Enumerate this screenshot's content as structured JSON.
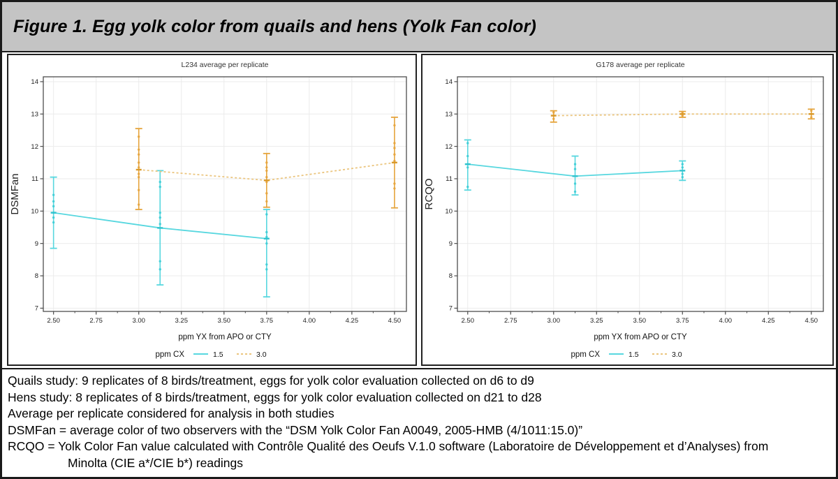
{
  "figure": {
    "title": "Figure 1. Egg yolk color from quails and hens (Yolk Fan color)"
  },
  "notes": [
    "Quails study: 9 replicates of 8 birds/treatment, eggs for yolk color evaluation collected on d6 to d9",
    "Hens study: 8 replicates of 8 birds/treatment, eggs for yolk color evaluation collected on d21 to d28",
    "Average per replicate considered for analysis in both studies",
    "DSMFan = average color of two observers with the “DSM Yolk Color Fan A0049, 2005-HMB (4/1011:15.0)”",
    "RCQO = Yolk Color Fan value calculated with Contrôle Qualité des Oeufs V.1.0 software (Laboratoire de Développement et d’Analyses) from",
    "Minolta (CIE a*/CIE b*) readings"
  ],
  "colors": {
    "title_bar_bg": "#c4c4c4",
    "grid": "#ebebeb",
    "frame": "#4d4d4d",
    "tick_text": "#222222",
    "cyan": "#57d7df",
    "cyan_dark": "#2fc3ce",
    "orange": "#e5a43c",
    "orange_line": "#ebc57e",
    "orange_dark": "#d9992a"
  },
  "chart_data": [
    {
      "type": "line",
      "title": "L234 average per replicate",
      "xlabel": "ppm YX from APO or CTY",
      "ylabel": "DSMFan",
      "legend_title": "ppm CX",
      "legend_position": "bottom",
      "grid": true,
      "xlim": [
        2.44,
        4.57
      ],
      "ylim": [
        6.9,
        14.15
      ],
      "xticks": [
        2.5,
        2.75,
        3.0,
        3.25,
        3.5,
        3.75,
        4.0,
        4.25,
        4.5
      ],
      "yticks": [
        7,
        8,
        9,
        10,
        11,
        12,
        13,
        14
      ],
      "series": [
        {
          "name": "1.5",
          "style": "solid",
          "color": "#57d7df",
          "line_color": "#57d7df",
          "mean_color": "#2fc3ce",
          "dot_color": "#3ecdd6",
          "points": [
            {
              "x": 2.5,
              "mean": 9.95,
              "lo": 8.85,
              "hi": 11.05,
              "replicates": [
                10.5,
                10.3,
                10.15,
                9.95,
                9.8,
                9.65
              ]
            },
            {
              "x": 3.125,
              "mean": 9.48,
              "lo": 7.72,
              "hi": 11.25,
              "replicates": [
                10.9,
                10.75,
                9.95,
                9.8,
                9.6,
                8.45,
                8.2
              ]
            },
            {
              "x": 3.75,
              "mean": 9.15,
              "lo": 7.35,
              "hi": 10.05,
              "replicates": [
                9.9,
                9.35,
                9.2,
                9.0,
                8.35,
                8.2
              ]
            }
          ]
        },
        {
          "name": "3.0",
          "style": "dashed",
          "color": "#e5a43c",
          "line_color": "#ebc57e",
          "mean_color": "#d9992a",
          "dot_color": "#e5a43c",
          "points": [
            {
              "x": 3.0,
              "mean": 11.28,
              "lo": 10.05,
              "hi": 12.55,
              "replicates": [
                12.3,
                11.9,
                11.75,
                11.5,
                11.35,
                11.15,
                11.05,
                10.65,
                10.2
              ]
            },
            {
              "x": 3.75,
              "mean": 10.95,
              "lo": 10.12,
              "hi": 11.78,
              "replicates": [
                11.5,
                11.35,
                11.25,
                11.05,
                10.9,
                10.55,
                10.3
              ]
            },
            {
              "x": 4.5,
              "mean": 11.5,
              "lo": 10.1,
              "hi": 12.9,
              "replicates": [
                12.65,
                12.1,
                11.95,
                11.75,
                11.55,
                10.85,
                10.7
              ]
            }
          ]
        }
      ]
    },
    {
      "type": "line",
      "title": "G178 average per replicate",
      "xlabel": "ppm YX from APO or CTY",
      "ylabel": "RCQO",
      "legend_title": "ppm CX",
      "legend_position": "bottom",
      "grid": true,
      "xlim": [
        2.44,
        4.57
      ],
      "ylim": [
        6.9,
        14.15
      ],
      "xticks": [
        2.5,
        2.75,
        3.0,
        3.25,
        3.5,
        3.75,
        4.0,
        4.25,
        4.5
      ],
      "yticks": [
        7,
        8,
        9,
        10,
        11,
        12,
        13,
        14
      ],
      "series": [
        {
          "name": "1.5",
          "style": "solid",
          "color": "#57d7df",
          "line_color": "#57d7df",
          "mean_color": "#2fc3ce",
          "dot_color": "#3ecdd6",
          "points": [
            {
              "x": 2.5,
              "mean": 11.45,
              "lo": 10.65,
              "hi": 12.2,
              "replicates": [
                12.1,
                11.7,
                11.45,
                11.35,
                10.75
              ]
            },
            {
              "x": 3.125,
              "mean": 11.08,
              "lo": 10.5,
              "hi": 11.7,
              "replicates": [
                11.45,
                11.3,
                10.85,
                10.6
              ]
            },
            {
              "x": 3.75,
              "mean": 11.25,
              "lo": 10.95,
              "hi": 11.55,
              "replicates": [
                11.45,
                11.35,
                11.15,
                11.05
              ]
            }
          ]
        },
        {
          "name": "3.0",
          "style": "dashed",
          "color": "#e5a43c",
          "line_color": "#ebc57e",
          "mean_color": "#d9992a",
          "dot_color": "#e5a43c",
          "points": [
            {
              "x": 3.0,
              "mean": 12.95,
              "lo": 12.75,
              "hi": 13.1,
              "replicates": [
                13.05,
                12.95,
                12.85
              ]
            },
            {
              "x": 3.75,
              "mean": 13.0,
              "lo": 12.9,
              "hi": 13.08,
              "replicates": [
                13.05,
                13.0,
                12.95
              ]
            },
            {
              "x": 4.5,
              "mean": 13.0,
              "lo": 12.85,
              "hi": 13.15,
              "replicates": [
                13.1,
                13.0,
                12.9
              ]
            }
          ]
        }
      ]
    }
  ]
}
